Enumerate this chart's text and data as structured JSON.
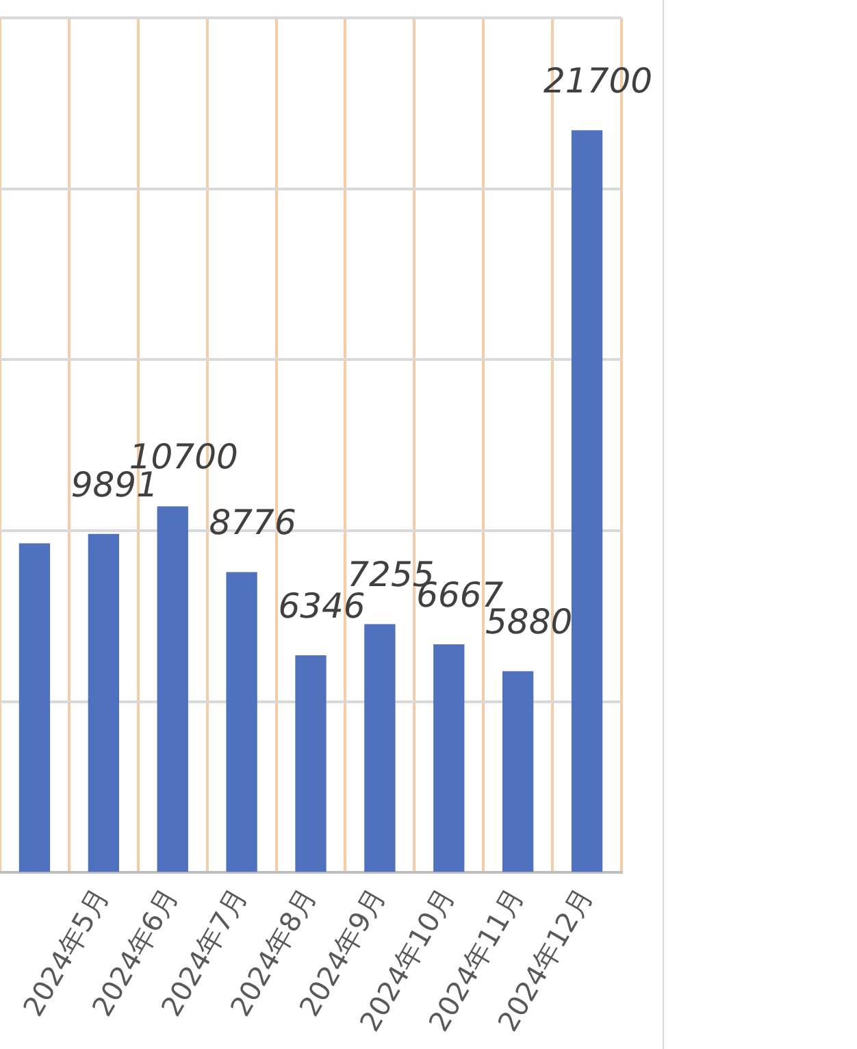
{
  "chart_data": {
    "type": "bar",
    "categories": [
      null,
      "2024年5月",
      "2024年6月",
      "2024年7月",
      "2024年8月",
      "2024年9月",
      "2024年10月",
      "2024年11月",
      "2024年12月"
    ],
    "values": [
      9620,
      9891,
      10700,
      8776,
      6346,
      7255,
      6667,
      5880,
      21700
    ],
    "value_labels": [
      null,
      "9891",
      "10700",
      "8776",
      "6346",
      "7255",
      "6667",
      "5880",
      "21700"
    ],
    "color": "#4f71be",
    "ylim": [
      0,
      25000
    ],
    "yticks": [
      {
        "value": 0,
        "label": null
      },
      {
        "value": 5000,
        "label": null
      },
      {
        "value": 10000,
        "label": null
      },
      {
        "value": 15000,
        "label": null
      },
      {
        "value": 20000,
        "label": null
      },
      {
        "value": 25000,
        "label": null
      }
    ],
    "grid": true
  }
}
